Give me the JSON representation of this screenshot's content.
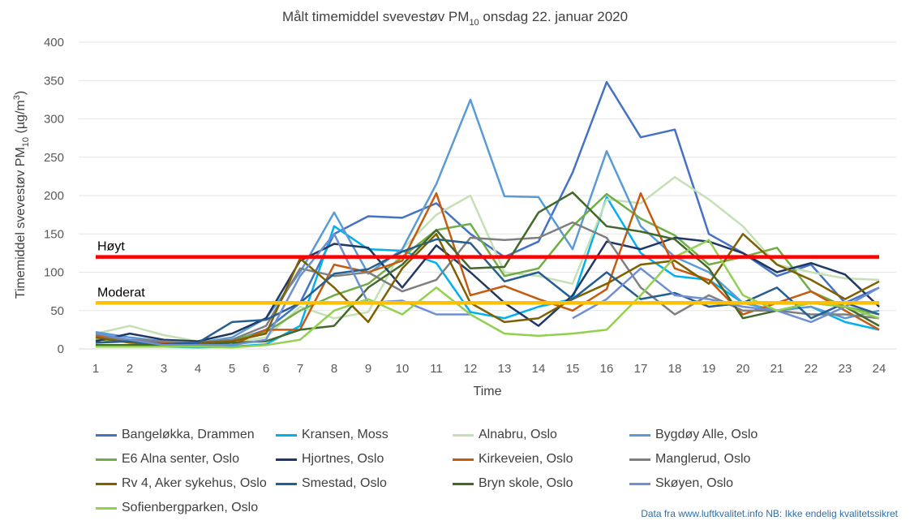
{
  "source_note": "Data fra www.luftkvalitet.info NB: Ikke endelig kvalitetssikret",
  "chart_data": {
    "type": "line",
    "title_main": "Målt timemiddel svevestøv PM",
    "title_sub": "10",
    "title_rest": " onsdag 22. januar 2020",
    "xlabel": "Time",
    "ylabel_main": "Timemiddel svevestøv PM",
    "ylabel_sub": "10",
    "ylabel_rest": " (µg/m",
    "ylabel_sup": "3",
    "ylabel_end": ")",
    "ylim": [
      0,
      400
    ],
    "yticks": [
      0,
      50,
      100,
      150,
      200,
      250,
      300,
      350,
      400
    ],
    "x": [
      1,
      2,
      3,
      4,
      5,
      6,
      7,
      8,
      9,
      10,
      11,
      12,
      13,
      14,
      15,
      16,
      17,
      18,
      19,
      20,
      21,
      22,
      23,
      24
    ],
    "thresholds": [
      {
        "label": "Høyt",
        "value": 120,
        "color": "#ff0000"
      },
      {
        "label": "Moderat",
        "value": 60,
        "color": "#ffc000"
      }
    ],
    "series": [
      {
        "name": "Bangeløkka, Drammen",
        "color": "#4472c4",
        "values": [
          15,
          12,
          8,
          5,
          10,
          25,
          60,
          150,
          173,
          171,
          190,
          150,
          120,
          140,
          230,
          348,
          276,
          286,
          150,
          125,
          95,
          110,
          60,
          80
        ]
      },
      {
        "name": "Kransen, Moss",
        "color": "#00b0f0",
        "values": [
          5,
          5,
          3,
          2,
          3,
          6,
          30,
          160,
          130,
          128,
          112,
          48,
          40,
          55,
          65,
          198,
          125,
          95,
          90,
          60,
          50,
          55,
          35,
          25
        ]
      },
      {
        "name": "Alnabru, Oslo",
        "color": "#c5e0b4",
        "values": [
          20,
          30,
          18,
          10,
          8,
          15,
          55,
          40,
          48,
          130,
          175,
          200,
          100,
          95,
          85,
          195,
          190,
          224,
          195,
          160,
          110,
          100,
          92,
          90
        ]
      },
      {
        "name": "Bygdøy Alle, Oslo",
        "color": "#5b9bd5",
        "values": [
          22,
          15,
          10,
          8,
          15,
          40,
          100,
          178,
          98,
          130,
          215,
          325,
          199,
          198,
          130,
          258,
          160,
          120,
          100,
          60,
          50,
          55,
          40,
          50
        ]
      },
      {
        "name": "E6 Alna senter, Oslo",
        "color": "#70ad47",
        "values": [
          12,
          10,
          6,
          5,
          12,
          22,
          50,
          70,
          85,
          120,
          155,
          163,
          95,
          105,
          160,
          202,
          170,
          148,
          110,
          120,
          132,
          75,
          55,
          45
        ]
      },
      {
        "name": "Hjortnes, Oslo",
        "color": "#203864",
        "values": [
          10,
          20,
          12,
          10,
          20,
          40,
          115,
          137,
          132,
          80,
          135,
          100,
          60,
          30,
          70,
          140,
          130,
          145,
          140,
          125,
          100,
          112,
          97,
          55
        ]
      },
      {
        "name": "Kirkeveien, Oslo",
        "color": "#c55a11",
        "values": [
          18,
          10,
          8,
          6,
          5,
          25,
          25,
          110,
          100,
          115,
          203,
          70,
          82,
          65,
          50,
          78,
          203,
          105,
          90,
          45,
          60,
          75,
          50,
          25
        ]
      },
      {
        "name": "Manglerud, Oslo",
        "color": "#7f7f7f",
        "values": [
          15,
          12,
          10,
          8,
          12,
          30,
          105,
          95,
          100,
          75,
          90,
          145,
          142,
          145,
          165,
          145,
          80,
          45,
          70,
          50,
          50,
          45,
          45,
          40
        ]
      },
      {
        "name": "Rv 4, Aker sykehus, Oslo",
        "color": "#7f6000",
        "values": [
          15,
          8,
          6,
          8,
          10,
          20,
          118,
          80,
          35,
          105,
          150,
          60,
          35,
          40,
          65,
          85,
          110,
          115,
          85,
          150,
          110,
          90,
          65,
          88
        ]
      },
      {
        "name": "Smestad, Oslo",
        "color": "#255e91",
        "values": [
          8,
          10,
          6,
          8,
          35,
          38,
          60,
          98,
          104,
          127,
          143,
          138,
          88,
          100,
          65,
          100,
          65,
          73,
          55,
          60,
          80,
          40,
          60,
          45
        ]
      },
      {
        "name": "Bryn skole, Oslo",
        "color": "#43682b",
        "values": [
          5,
          5,
          5,
          5,
          8,
          10,
          25,
          30,
          80,
          110,
          155,
          105,
          107,
          178,
          204,
          160,
          153,
          143,
          105,
          40,
          50,
          60,
          55,
          30
        ]
      },
      {
        "name": "Skøyen, Oslo",
        "color": "#6f8fd0",
        "values": [
          20,
          12,
          5,
          5,
          5,
          12,
          95,
          150,
          60,
          63,
          45,
          45,
          null,
          null,
          40,
          65,
          105,
          70,
          65,
          55,
          50,
          35,
          55,
          80
        ]
      },
      {
        "name": "Sofienbergparken, Oslo",
        "color": "#92d050",
        "values": [
          3,
          3,
          3,
          3,
          2,
          5,
          12,
          50,
          65,
          45,
          80,
          45,
          20,
          17,
          20,
          25,
          70,
          120,
          142,
          70,
          50,
          60,
          55,
          40
        ]
      }
    ]
  }
}
